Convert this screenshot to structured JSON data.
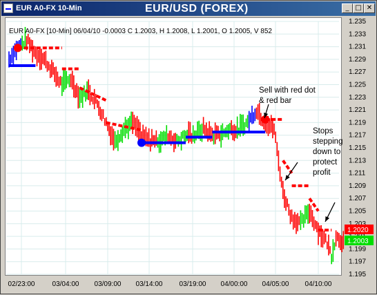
{
  "window": {
    "title": "EUR A0-FX 10-Min",
    "chart_title": "EUR/USD (FOREX)",
    "minimize_label": "_",
    "maximize_label": "□",
    "close_label": "✕"
  },
  "info_line": "EUR A0-FX [10-Min] 06/04/10  -0.0003 C 1.2003, H 1.2008, L 1.2001, O 1.2005, V 852",
  "annotations": [
    {
      "lines": [
        "Sell with red dot",
        "& red bar"
      ]
    },
    {
      "lines": [
        "Stops",
        "stepping",
        "down to",
        "protect",
        "profit"
      ]
    }
  ],
  "price_tags": [
    {
      "label": "1.2020",
      "value": 1.202,
      "color": "#ff0000"
    },
    {
      "label": "1.2003",
      "value": 1.2003,
      "color": "#00dd00"
    }
  ],
  "colors": {
    "up_bar": "#00dd00",
    "down_bar": "#ff0000",
    "trend_bar": "#0000ff",
    "stop_up": "#0000ff",
    "stop_down": "#ff0000"
  },
  "chart_data": {
    "type": "line",
    "x_ticks": [
      "02/23:00",
      "03/04:00",
      "03/09:00",
      "03/14:00",
      "03/19:00",
      "04/00:00",
      "04/05:00",
      "04/10:00"
    ],
    "y_ticks": [
      "1.235",
      "1.233",
      "1.231",
      "1.229",
      "1.227",
      "1.225",
      "1.223",
      "1.221",
      "1.219",
      "1.217",
      "1.215",
      "1.213",
      "1.211",
      "1.209",
      "1.207",
      "1.205",
      "1.203",
      "1.201",
      "1.199",
      "1.197",
      "1.195"
    ],
    "ylim": [
      1.195,
      1.235
    ],
    "grid": true,
    "series": [
      {
        "style": "bars",
        "points": [
          [
            0,
            1.229
          ],
          [
            2,
            1.231
          ],
          [
            4,
            1.232
          ],
          [
            6,
            1.23
          ],
          [
            8,
            1.229
          ],
          [
            10,
            1.227
          ],
          [
            12,
            1.225
          ],
          [
            14,
            1.226
          ],
          [
            16,
            1.223
          ],
          [
            18,
            1.224
          ],
          [
            20,
            1.222
          ],
          [
            22,
            1.219
          ],
          [
            24,
            1.216
          ],
          [
            26,
            1.218
          ],
          [
            28,
            1.219
          ],
          [
            30,
            1.217
          ],
          [
            32,
            1.216
          ],
          [
            34,
            1.216
          ],
          [
            36,
            1.217
          ],
          [
            38,
            1.216
          ],
          [
            40,
            1.217
          ],
          [
            42,
            1.217
          ],
          [
            44,
            1.218
          ],
          [
            46,
            1.217
          ],
          [
            48,
            1.217
          ],
          [
            50,
            1.218
          ],
          [
            52,
            1.218
          ],
          [
            54,
            1.219
          ],
          [
            56,
            1.221
          ],
          [
            58,
            1.219
          ],
          [
            60,
            1.218
          ],
          [
            61,
            1.213
          ],
          [
            62,
            1.208
          ],
          [
            64,
            1.204
          ],
          [
            66,
            1.203
          ],
          [
            68,
            1.205
          ],
          [
            70,
            1.202
          ],
          [
            72,
            1.2
          ],
          [
            73,
            1.198
          ],
          [
            74,
            1.201
          ],
          [
            76,
            1.2
          ]
        ]
      },
      {
        "name": "stop",
        "style": "line",
        "segments": [
          {
            "color": "stop_up",
            "points": [
              [
                0,
                1.228
              ],
              [
                6,
                1.228
              ]
            ]
          },
          {
            "color": "stop_down",
            "points": [
              [
                2,
                1.2308
              ],
              [
                12,
                1.2308
              ]
            ]
          },
          {
            "color": "stop_down",
            "points": [
              [
                12,
                1.2275
              ],
              [
                16,
                1.2275
              ]
            ]
          },
          {
            "color": "stop_down",
            "points": [
              [
                16,
                1.2245
              ],
              [
                22,
                1.2225
              ]
            ]
          },
          {
            "color": "stop_down",
            "points": [
              [
                22,
                1.219
              ],
              [
                30,
                1.2178
              ]
            ]
          },
          {
            "color": "stop_up",
            "points": [
              [
                30,
                1.2158
              ],
              [
                40,
                1.2158
              ]
            ]
          },
          {
            "color": "stop_up",
            "points": [
              [
                40,
                1.2167
              ],
              [
                46,
                1.2167
              ]
            ]
          },
          {
            "color": "stop_up",
            "points": [
              [
                46,
                1.2175
              ],
              [
                58,
                1.2175
              ]
            ]
          },
          {
            "color": "stop_down",
            "points": [
              [
                58,
                1.2195
              ],
              [
                62,
                1.2195
              ]
            ]
          },
          {
            "color": "stop_down",
            "points": [
              [
                62,
                1.213
              ],
              [
                64,
                1.211
              ]
            ]
          },
          {
            "color": "stop_down",
            "points": [
              [
                64,
                1.209
              ],
              [
                68,
                1.209
              ]
            ]
          },
          {
            "color": "stop_down",
            "points": [
              [
                68,
                1.207
              ],
              [
                70,
                1.205
              ]
            ]
          },
          {
            "color": "stop_down",
            "points": [
              [
                70,
                1.202
              ],
              [
                73,
                1.202
              ]
            ]
          }
        ]
      }
    ],
    "markers": [
      {
        "x": 2,
        "y": 1.2308,
        "color": "#ff0000"
      },
      {
        "x": 30,
        "y": 1.2158,
        "color": "#0000ff"
      },
      {
        "x": 58,
        "y": 1.2195,
        "color": "#ff0000"
      }
    ]
  }
}
